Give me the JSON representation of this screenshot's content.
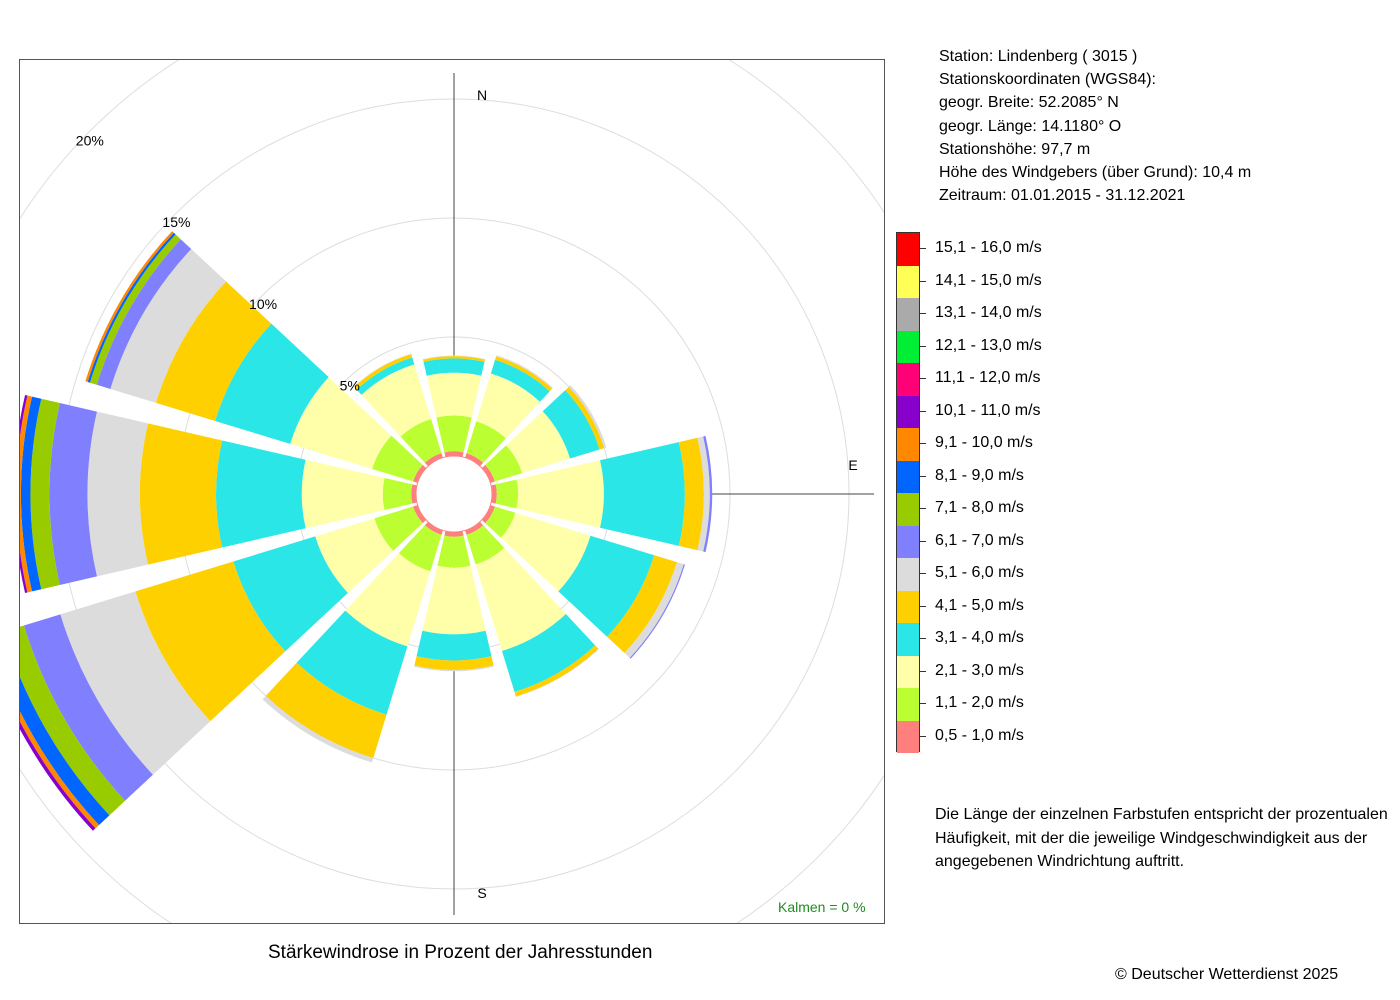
{
  "station": {
    "line1": "Station:  Lindenberg  ( 3015 )",
    "line2": "Stationskoordinaten (WGS84):",
    "line3": "geogr. Breite: 52.2085° N",
    "line4": "geogr. Länge: 14.1180° O",
    "line5": "Stationshöhe: 97,7 m",
    "line6": "Höhe des Windgebers (über Grund): 10,4 m",
    "line7": "Zeitraum: 01.01.2015 - 31.12.2021"
  },
  "explanation": {
    "line1": "Die Länge der einzelnen Farbstufen entspricht der prozentualen",
    "line2": "Häufigkeit, mit der die jeweilige Windgeschwindigkeit aus der",
    "line3": "angegebenen Windrichtung auftritt."
  },
  "copyright": "© Deutscher Wetterdienst  2025",
  "calm": "Kalmen  =  0 %",
  "chart_data": {
    "type": "windrose",
    "title": "Stärkewindrose in Prozent der Jahresstunden",
    "compass_labels": {
      "north": "N",
      "east": "E",
      "south": "S"
    },
    "radial_ticks": [
      {
        "value": 5,
        "label": "5%"
      },
      {
        "value": 10,
        "label": "10%"
      },
      {
        "value": 15,
        "label": "15%"
      },
      {
        "value": 20,
        "label": "20%"
      }
    ],
    "speed_classes": [
      {
        "label": "0,5 - 1,0 m/s",
        "color": "#ff7f7f"
      },
      {
        "label": "1,1 - 2,0 m/s",
        "color": "#bbff33"
      },
      {
        "label": "2,1 - 3,0 m/s",
        "color": "#ffffaa"
      },
      {
        "label": "3,1 - 4,0 m/s",
        "color": "#2ae6e6"
      },
      {
        "label": "4,1 - 5,0 m/s",
        "color": "#ffd000"
      },
      {
        "label": "5,1 - 6,0 m/s",
        "color": "#dcdcdc"
      },
      {
        "label": "6,1 - 7,0 m/s",
        "color": "#8080ff"
      },
      {
        "label": "7,1 - 8,0 m/s",
        "color": "#99cc00"
      },
      {
        "label": "8,1 - 9,0 m/s",
        "color": "#0066ff"
      },
      {
        "label": "9,1 - 10,0 m/s",
        "color": "#ff8800"
      },
      {
        "label": "10,1 - 11,0 m/s",
        "color": "#8800cc"
      },
      {
        "label": "11,1 - 12,0 m/s",
        "color": "#ff0077"
      },
      {
        "label": "12,1 - 13,0 m/s",
        "color": "#00ee33"
      },
      {
        "label": "13,1 - 14,0 m/s",
        "color": "#aaaaaa"
      },
      {
        "label": "14,1 - 15,0 m/s",
        "color": "#ffff55"
      },
      {
        "label": "15,1 - 16,0 m/s",
        "color": "#ff0000"
      }
    ],
    "sectors": [
      {
        "direction": 0,
        "values": [
          0.2,
          1.5,
          1.8,
          0.6,
          0.1,
          0.02
        ]
      },
      {
        "direction": 30,
        "values": [
          0.2,
          1.4,
          2.1,
          0.6,
          0.15,
          0.05
        ]
      },
      {
        "direction": 60,
        "values": [
          0.2,
          1.2,
          2.1,
          1.3,
          0.2,
          0.1
        ]
      },
      {
        "direction": 90,
        "values": [
          0.2,
          0.9,
          3.6,
          3.4,
          0.8,
          0.25,
          0.1
        ]
      },
      {
        "direction": 120,
        "values": [
          0.2,
          0.9,
          3.3,
          2.8,
          1.0,
          0.3,
          0.05
        ]
      },
      {
        "direction": 150,
        "values": [
          0.2,
          1.3,
          3.8,
          1.8,
          0.2,
          0.02
        ]
      },
      {
        "direction": 180,
        "values": [
          0.2,
          1.3,
          2.8,
          1.1,
          0.4,
          0.05
        ]
      },
      {
        "direction": 210,
        "values": [
          0.2,
          1.6,
          3.3,
          3.0,
          1.9,
          0.2
        ]
      },
      {
        "direction": 240,
        "values": [
          0.2,
          1.7,
          2.6,
          3.6,
          4.3,
          3.3,
          1.6,
          0.9,
          0.6,
          0.2,
          0.15
        ]
      },
      {
        "direction": 270,
        "values": [
          0.2,
          1.2,
          3.4,
          3.6,
          3.2,
          2.2,
          1.6,
          0.8,
          0.4,
          0.2,
          0.1
        ]
      },
      {
        "direction": 300,
        "values": [
          0.2,
          1.8,
          3.6,
          3.3,
          2.6,
          2.0,
          0.6,
          0.3,
          0.1,
          0.1
        ]
      },
      {
        "direction": 330,
        "values": [
          0.2,
          1.5,
          2.4,
          0.3,
          0.15,
          0.02
        ]
      }
    ],
    "rmax": 20
  }
}
